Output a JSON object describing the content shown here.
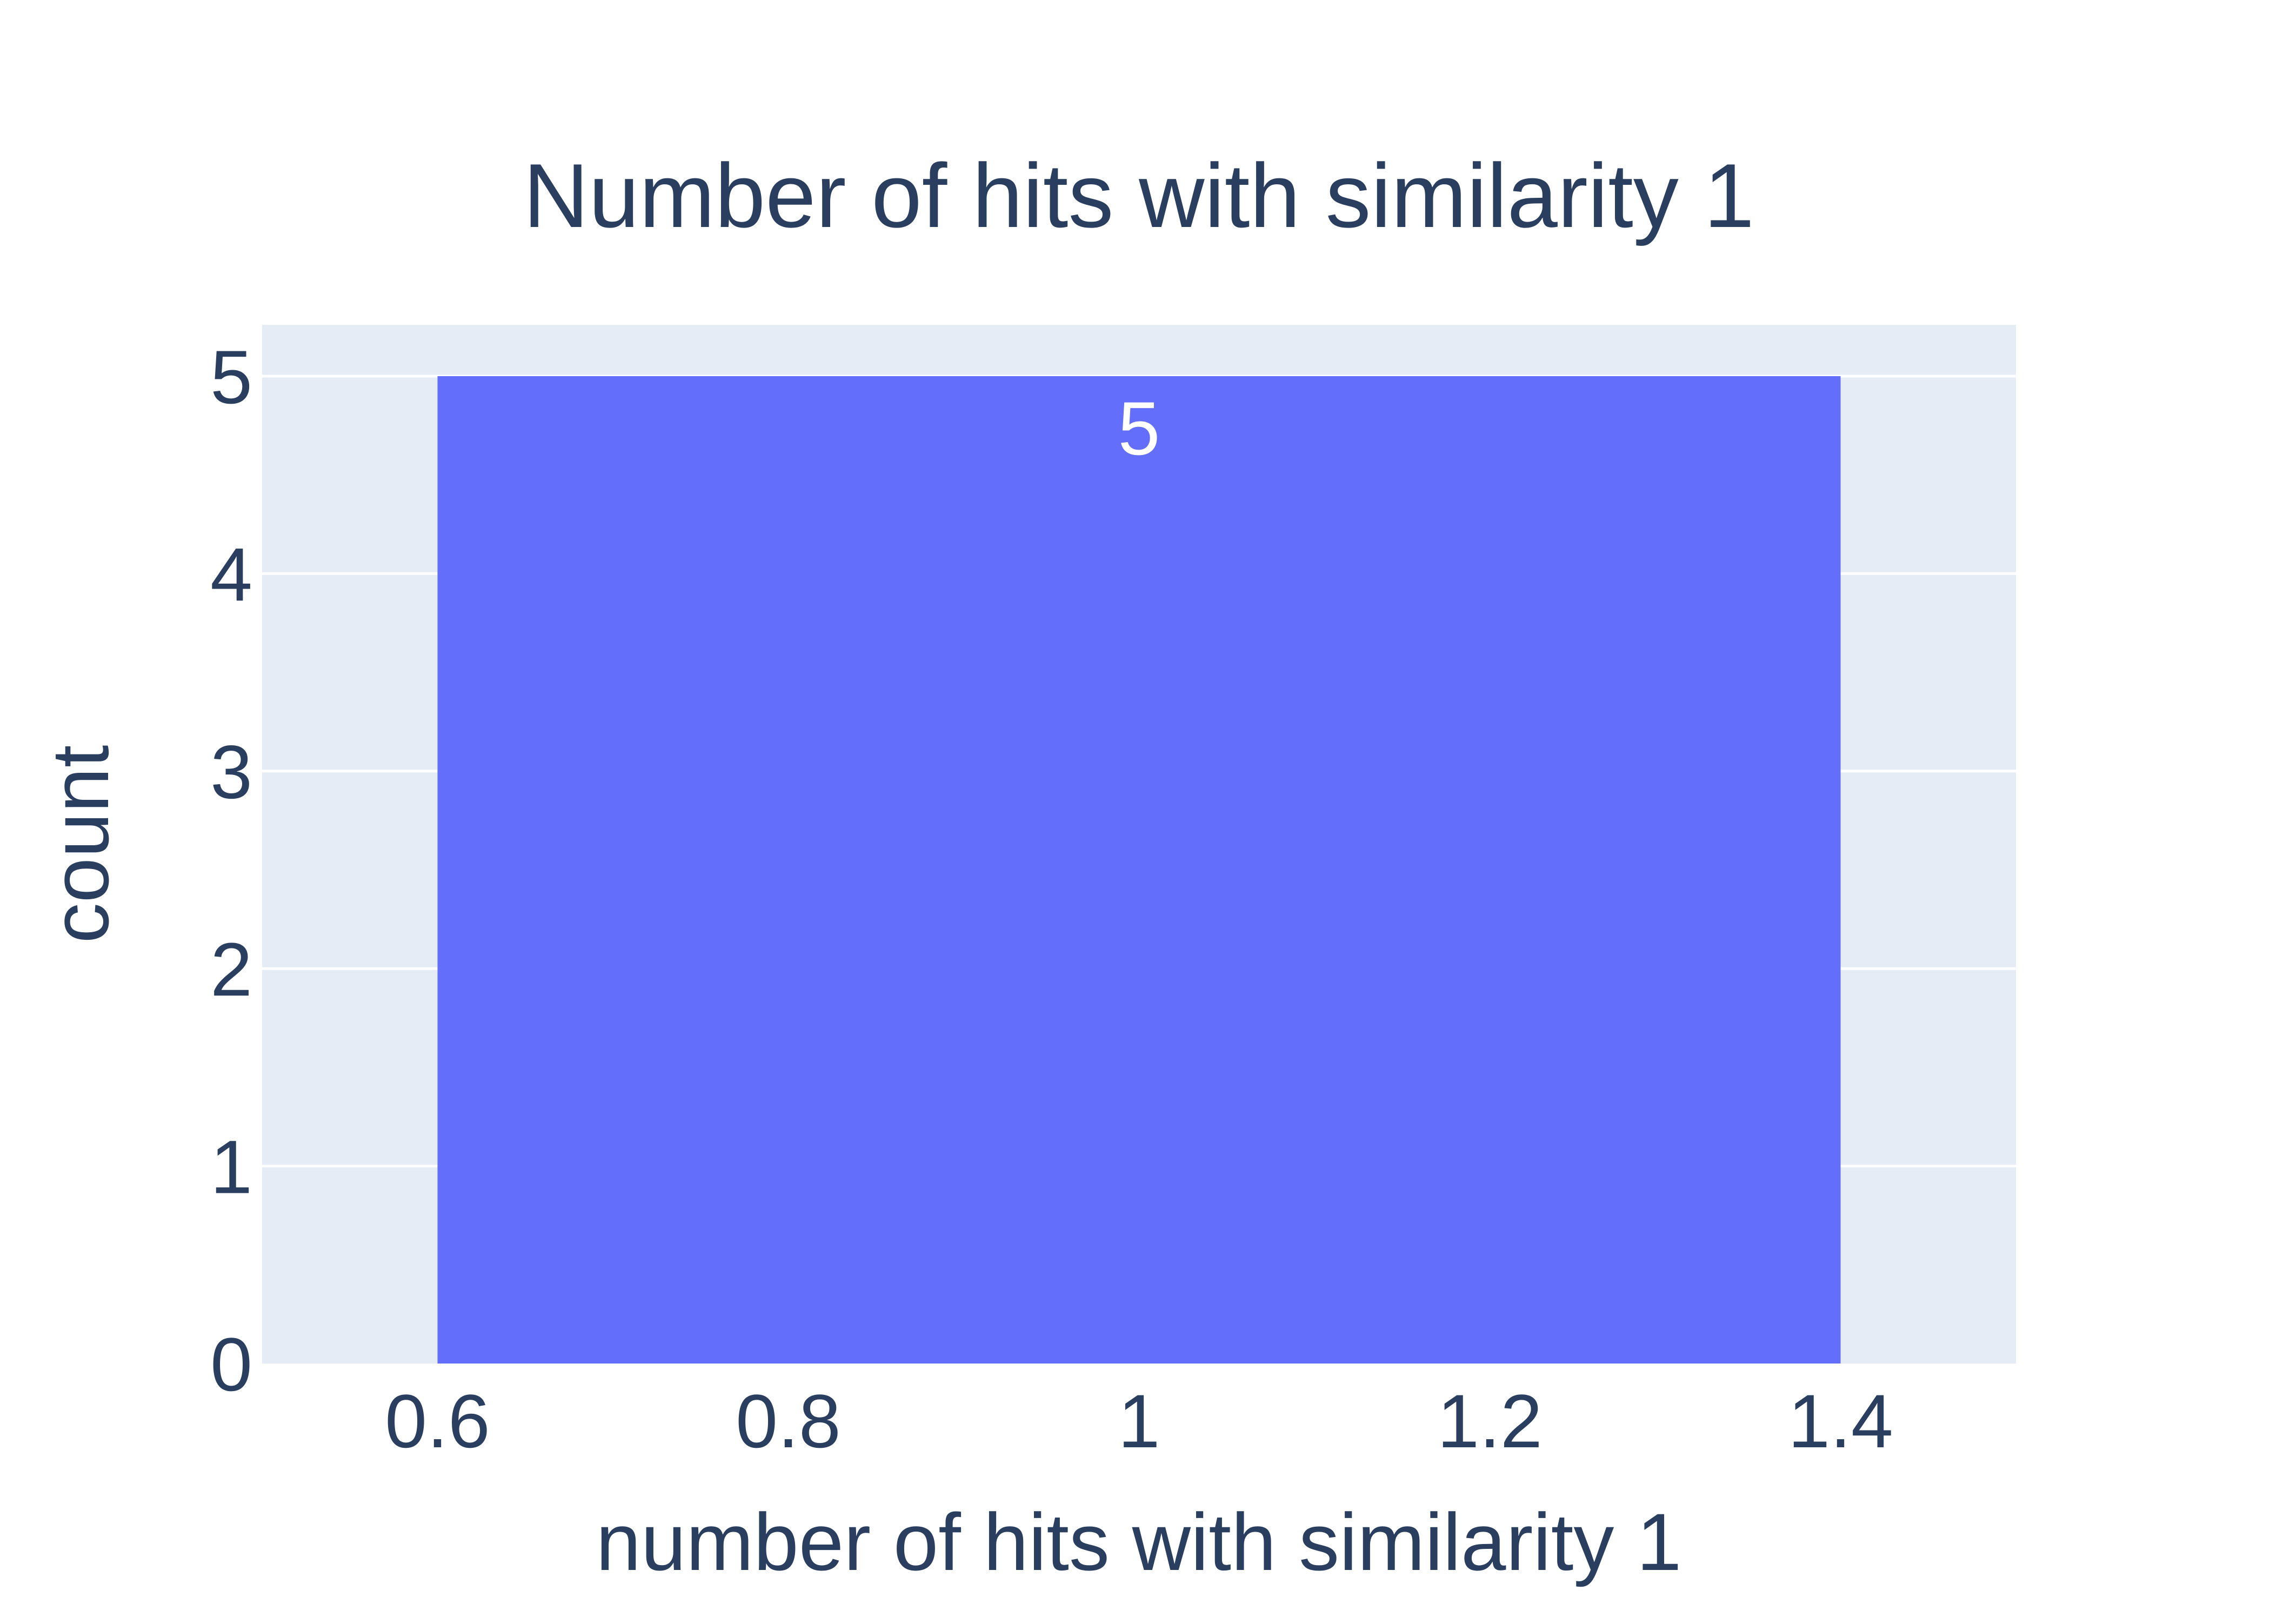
{
  "chart_data": {
    "type": "bar",
    "title": "Number of hits with similarity 1",
    "xlabel": "number of hits with similarity 1",
    "ylabel": "count",
    "bins": [
      {
        "x0": 0.6,
        "x1": 1.4,
        "value": 5,
        "label": "5"
      }
    ],
    "xlim": [
      0.5,
      1.5
    ],
    "ylim": [
      0,
      5.26
    ],
    "x_ticks": [
      {
        "value": 0.6,
        "label": "0.6"
      },
      {
        "value": 0.8,
        "label": "0.8"
      },
      {
        "value": 1.0,
        "label": "1"
      },
      {
        "value": 1.2,
        "label": "1.2"
      },
      {
        "value": 1.4,
        "label": "1.4"
      }
    ],
    "y_ticks": [
      {
        "value": 0,
        "label": "0"
      },
      {
        "value": 1,
        "label": "1"
      },
      {
        "value": 2,
        "label": "2"
      },
      {
        "value": 3,
        "label": "3"
      },
      {
        "value": 4,
        "label": "4"
      },
      {
        "value": 5,
        "label": "5"
      }
    ],
    "grid": true,
    "colors": {
      "bar": "#636efa",
      "plot_background": "#e5ecf6",
      "grid": "#ffffff",
      "text": "#2a3f5f",
      "bar_label": "#ffffff"
    }
  }
}
